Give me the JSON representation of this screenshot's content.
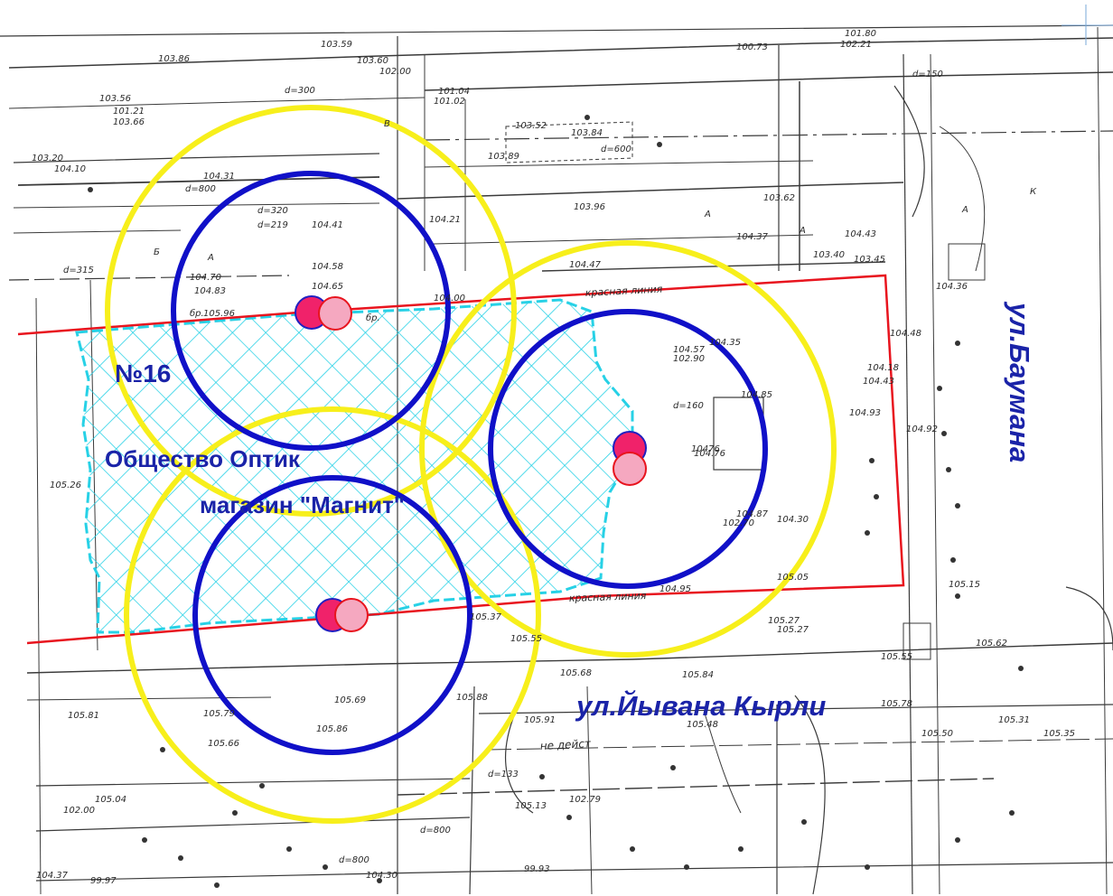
{
  "map": {
    "site_label": "№16",
    "organization_label": "Общество Оптик",
    "store_label": "магазин \"Магнит\"",
    "street_bauman": "ул.Баумана",
    "street_kyrli": "ул.Йывана Кырли",
    "red_line_label": "красная линия",
    "not_active_label": "не дейст",
    "survey_labels": [
      "103.59",
      "103.60",
      "102.00",
      "103.86",
      "d=300",
      "103.56",
      "101.21",
      "103.66",
      "104.10",
      "103.20",
      "104.31",
      "d=800",
      "d=320",
      "d=219",
      "104.41",
      "104.70",
      "104.83",
      "105.96",
      "104.58",
      "104.65",
      "d=315",
      "105.26",
      "104.00",
      "103.96",
      "104.21",
      "104.47",
      "104.35",
      "104.57",
      "102.90",
      "104.76",
      "104.87",
      "102.70",
      "104.30",
      "104.95",
      "104.93",
      "105.05",
      "105.37",
      "105.27",
      "105.55",
      "105.68",
      "105.84",
      "105.88",
      "105.69",
      "105.86",
      "105.79",
      "105.66",
      "105.81",
      "105.91",
      "105.48",
      "105.50",
      "105.31",
      "105.35",
      "105.78",
      "104.37",
      "105.04",
      "d=133",
      "d=150",
      "d=160",
      "104.36",
      "104.92",
      "105.15",
      "105.62",
      "99.93",
      "99.97",
      "101.04",
      "101.02",
      "101.80",
      "102.21",
      "100.73",
      "103.52",
      "103.89",
      "103.84",
      "103.62",
      "104.37",
      "104.43",
      "103.45",
      "103.40",
      "104.18",
      "104.43",
      "104.48",
      "d=600",
      "d=800",
      "d=800",
      "104.30",
      "10476",
      "104.85",
      "105.27",
      "105.55",
      "102.79",
      "105.13",
      "102.00",
      "Б",
      "В",
      "К",
      "А",
      "А",
      "А",
      "А",
      "бр.",
      "бр."
    ],
    "colors": {
      "red_line": "#e8141e",
      "yellow_circle": "#f7ef1b",
      "blue_circle": "#1010c8",
      "hatch": "#27d1e6",
      "label_blue": "#1a23a8",
      "marker_dark": "#f0226a",
      "marker_light": "#f5a8c0"
    },
    "icons": [
      "well-marker-icon",
      "red-line",
      "coverage-circle"
    ]
  }
}
